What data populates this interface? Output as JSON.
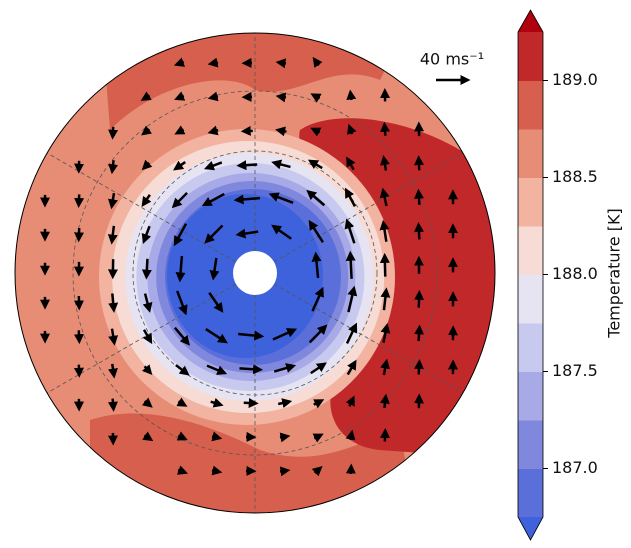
{
  "chart_data": {
    "type": "polar-contour",
    "colorbar_label": "Temperature [K]",
    "vector_key_label": "40 ms⁻¹",
    "ylim": [
      186.75,
      189.25
    ],
    "yticks": [
      {
        "value": 187,
        "label": "187.0"
      },
      {
        "value": 187.5,
        "label": "187.5"
      },
      {
        "value": 188,
        "label": "188.0"
      },
      {
        "value": 188.5,
        "label": "188.5"
      },
      {
        "value": 189,
        "label": "189.0"
      }
    ],
    "colors": [
      "#5a6fd9",
      "#8088de",
      "#a7aae6",
      "#c8c9ef",
      "#e6e4f3",
      "#f7dcd5",
      "#f2b3a1",
      "#e88d75",
      "#d6604d",
      "#c0282a"
    ],
    "under_color": "#3e62dc",
    "over_color": "#b0000f"
  }
}
